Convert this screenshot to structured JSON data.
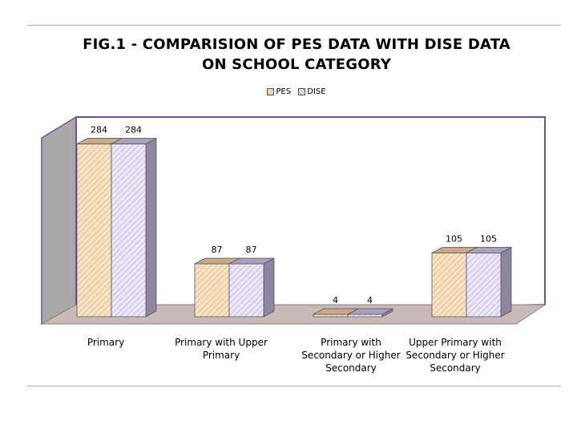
{
  "chart_data": {
    "type": "bar",
    "title": "FIG.1 - COMPARISION OF PES DATA WITH DISE  DATA",
    "subtitle": "ON SCHOOL CATEGORY",
    "categories": [
      "Primary",
      "Primary with Upper\nPrimary",
      "Primary with\nSecondary or Higher\nSecondary",
      "Upper Primary with\nSecondary or Higher\nSecondary"
    ],
    "series": [
      {
        "name": "PES",
        "values": [
          284,
          87,
          4,
          105
        ],
        "color": "#f7e3c4",
        "stripe": "#c9a27a"
      },
      {
        "name": "DISE",
        "values": [
          284,
          87,
          4,
          105
        ],
        "color": "#ece6f6",
        "stripe": "#a99cc9"
      }
    ],
    "ylim": [
      0,
      290
    ],
    "grid": false,
    "legend_position": "top",
    "three_d": true,
    "wall_color": "#a9a9a9",
    "floor_color": "#c9b9b9",
    "frame_color": "#7b4aa5"
  }
}
